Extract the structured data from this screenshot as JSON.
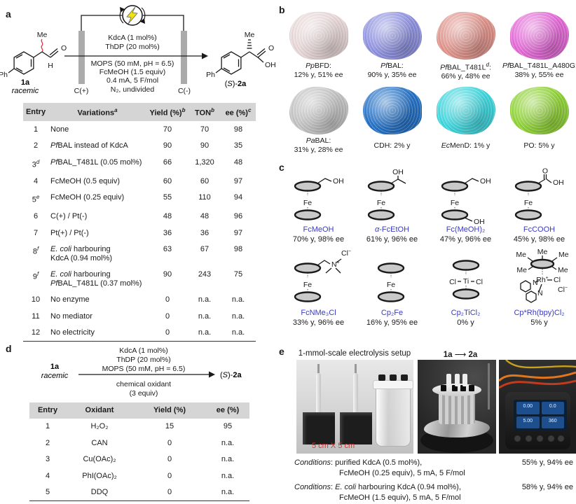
{
  "colors": {
    "accent": "#3b3bc0",
    "red": "#d53535",
    "header_bg": "#d5d5d5",
    "lightning": "#f0e20c"
  },
  "figure": {
    "panel_a": {
      "label": "a",
      "scheme": {
        "substrate": {
          "name": "1a",
          "note": "racemic",
          "me": "Me",
          "o": "O",
          "h": "H",
          "ph": "Ph"
        },
        "product": {
          "label_pre": "(",
          "label_stereo": "S",
          "label_post": ")-",
          "label_name": "2a",
          "me": "Me",
          "o": "O",
          "oh": "OH",
          "ph": "Ph"
        },
        "conditions_above": [
          "KdcA (1 mol%)",
          "ThDP (20 mol%)"
        ],
        "conditions_below": [
          "MOPS (50 mM, pH = 6.5)",
          "FcMeOH (1.5 equiv)",
          "0.4 mA, 5 F/mol",
          "N₂, undivided"
        ],
        "anode": "C(+)",
        "cathode": "C(-)"
      },
      "table": {
        "headers": [
          [
            {
              "t": "Entry"
            }
          ],
          [
            {
              "t": "Variations"
            },
            {
              "t": "a",
              "s": "sup"
            }
          ],
          [
            {
              "t": "Yield (%)"
            },
            {
              "t": "b",
              "s": "sup"
            }
          ],
          [
            {
              "t": "TON"
            },
            {
              "t": "b",
              "s": "sup"
            }
          ],
          [
            {
              "t": "ee (%)"
            },
            {
              "t": "c",
              "s": "sup"
            }
          ]
        ],
        "rows": [
          {
            "entry": [
              {
                "t": "1"
              }
            ],
            "variation": [
              {
                "t": "None"
              }
            ],
            "yield": "70",
            "ton": "70",
            "ee": "98"
          },
          {
            "entry": [
              {
                "t": "2"
              }
            ],
            "variation": [
              {
                "t": "Pf",
                "s": "i"
              },
              {
                "t": "BAL instead of KdcA"
              }
            ],
            "yield": "90",
            "ton": "90",
            "ee": "35"
          },
          {
            "entry": [
              {
                "t": "3"
              },
              {
                "t": "d",
                "s": "sup"
              }
            ],
            "variation": [
              {
                "t": "Pf",
                "s": "i"
              },
              {
                "t": "BAL_T481L (0.05 mol%)"
              }
            ],
            "yield": "66",
            "ton": "1,320",
            "ee": "48"
          },
          {
            "entry": [
              {
                "t": "4"
              }
            ],
            "variation": [
              {
                "t": "FcMeOH (0.5 equiv)"
              }
            ],
            "yield": "60",
            "ton": "60",
            "ee": "97"
          },
          {
            "entry": [
              {
                "t": "5"
              },
              {
                "t": "e",
                "s": "sup"
              }
            ],
            "variation": [
              {
                "t": "FcMeOH (0.25 equiv)"
              }
            ],
            "yield": "55",
            "ton": "110",
            "ee": "94"
          },
          {
            "entry": [
              {
                "t": "6"
              }
            ],
            "variation": [
              {
                "t": "C(+) / Pt(-)"
              }
            ],
            "yield": "48",
            "ton": "48",
            "ee": "96"
          },
          {
            "entry": [
              {
                "t": "7"
              }
            ],
            "variation": [
              {
                "t": "Pt(+) / Pt(-)"
              }
            ],
            "yield": "36",
            "ton": "36",
            "ee": "97"
          },
          {
            "entry": [
              {
                "t": "8"
              },
              {
                "t": "f",
                "s": "sup"
              }
            ],
            "variation": [
              {
                "t": "E. coli",
                "s": "i"
              },
              {
                "t": " harbouring"
              },
              {
                "br": true
              },
              {
                "t": "KdcA (0.94 mol%)"
              }
            ],
            "yield": "63",
            "ton": "67",
            "ee": "98"
          },
          {
            "entry": [
              {
                "t": "9"
              },
              {
                "t": "f",
                "s": "sup"
              }
            ],
            "variation": [
              {
                "t": "E. coli",
                "s": "i"
              },
              {
                "t": " harbouring"
              },
              {
                "br": true
              },
              {
                "t": "Pf",
                "s": "i"
              },
              {
                "t": "BAL_T481L (0.37 mol%)"
              }
            ],
            "yield": "90",
            "ton": "243",
            "ee": "75"
          },
          {
            "entry": [
              {
                "t": "10"
              }
            ],
            "variation": [
              {
                "t": "No enzyme"
              }
            ],
            "yield": "0",
            "ton": "n.a.",
            "ee": "n.a."
          },
          {
            "entry": [
              {
                "t": "11"
              }
            ],
            "variation": [
              {
                "t": "No mediator"
              }
            ],
            "yield": "0",
            "ton": "n.a.",
            "ee": "n.a."
          },
          {
            "entry": [
              {
                "t": "12"
              }
            ],
            "variation": [
              {
                "t": "No electricity"
              }
            ],
            "yield": "0",
            "ton": "n.a.",
            "ee": "n.a."
          }
        ]
      }
    },
    "panel_b": {
      "label": "b",
      "items": [
        {
          "name": [
            {
              "t": "Pp",
              "s": "i"
            },
            {
              "t": "BFD:"
            }
          ],
          "result": "12% y, 51% ee",
          "color": "#ead9d9"
        },
        {
          "name": [
            {
              "t": "Pf",
              "s": "i"
            },
            {
              "t": "BAL:"
            }
          ],
          "result": "90% y, 35% ee",
          "color": "#8f92e2"
        },
        {
          "name": [
            {
              "t": "Pf",
              "s": "i"
            },
            {
              "t": "BAL_T481L"
            },
            {
              "t": "d",
              "s": "sup"
            },
            {
              "t": ":"
            }
          ],
          "result": "66% y, 48% ee",
          "color": "#e2948c"
        },
        {
          "name": [
            {
              "t": "Pf",
              "s": "i"
            },
            {
              "t": "BAL_T481L_A480G:"
            }
          ],
          "result": "38% y, 55% ee",
          "color": "#e568d8"
        },
        {
          "name": [
            {
              "t": "Pa",
              "s": "i"
            },
            {
              "t": "BAL:"
            }
          ],
          "result": "31% y, 28% ee",
          "color": "#c4c4c4"
        },
        {
          "name": [
            {
              "t": "CDH: 2% y"
            }
          ],
          "result": "",
          "color": "#2472c8"
        },
        {
          "name": [
            {
              "t": "Ec",
              "s": "i"
            },
            {
              "t": "MenD: 1% y"
            }
          ],
          "result": "",
          "color": "#3ed8e0"
        },
        {
          "name": [
            {
              "t": "PO: 5% y"
            }
          ],
          "result": "",
          "color": "#90d435"
        }
      ]
    },
    "panel_c": {
      "label": "c",
      "atoms": {
        "fe": "Fe",
        "oh": "OH",
        "o": "O",
        "h": "H",
        "me": "Me",
        "n": "N",
        "cl": "Cl",
        "ti": "Ti",
        "rh": "Rh",
        "plus": "+",
        "minus": "−"
      },
      "items": [
        {
          "label": [
            {
              "t": "FcMeOH"
            }
          ],
          "result": "70% y, 98% ee"
        },
        {
          "label": [
            {
              "t": "α",
              "s": "i"
            },
            {
              "t": "-FcEtOH"
            }
          ],
          "result": "61% y, 96% ee"
        },
        {
          "label": [
            {
              "t": "Fc(MeOH)₂"
            }
          ],
          "result": "47% y, 96% ee"
        },
        {
          "label": [
            {
              "t": "FcCOOH"
            }
          ],
          "result": "45% y, 98% ee"
        },
        {
          "label": [
            {
              "t": "FcNMe₃Cl"
            }
          ],
          "result": "33% y, 96% ee"
        },
        {
          "label": [
            {
              "t": "Cp₂Fe"
            }
          ],
          "result": "16% y, 95% ee"
        },
        {
          "label": [
            {
              "t": "Cp₂TiCl₂"
            }
          ],
          "result": "0% y"
        },
        {
          "label": [
            {
              "t": "Cp*Rh(bpy)Cl₂"
            }
          ],
          "result": "5% y"
        }
      ]
    },
    "panel_d": {
      "label": "d",
      "scheme": {
        "substrate": {
          "name": "1a",
          "note": "racemic"
        },
        "product": {
          "label_pre": "(",
          "label_stereo": "S",
          "label_post": ")-",
          "label_name": "2a"
        },
        "conditions_above": [
          "KdcA (1 mol%)",
          "ThDP (20 mol%)",
          "MOPS (50 mM, pH = 6.5)"
        ],
        "conditions_below": [
          "chemical oxidant",
          "(3 equiv)"
        ]
      },
      "table": {
        "headers": [
          [
            {
              "t": "Entry"
            }
          ],
          [
            {
              "t": "Oxidant"
            }
          ],
          [
            {
              "t": "Yield (%)"
            }
          ],
          [
            {
              "t": "ee (%)"
            }
          ]
        ],
        "rows": [
          {
            "entry": "1",
            "oxidant": "H₂O₂",
            "yield": "15",
            "ee": "95"
          },
          {
            "entry": "2",
            "oxidant": "CAN",
            "yield": "0",
            "ee": "n.a."
          },
          {
            "entry": "3",
            "oxidant": "Cu(OAc)₂",
            "yield": "0",
            "ee": "n.a."
          },
          {
            "entry": "4",
            "oxidant": "PhI(OAc)₂",
            "yield": "0",
            "ee": "n.a."
          },
          {
            "entry": "5",
            "oxidant": "DDQ",
            "yield": "0",
            "ee": "n.a."
          }
        ]
      }
    },
    "panel_e": {
      "label": "e",
      "setup_title": "1-mmol-scale electrolysis setup",
      "reaction_from": "1a",
      "reaction_arrow": "⟶",
      "reaction_to": "2a",
      "scale_note": "5 cm X 5 cm",
      "device_screen": [
        "0.00",
        "0.0",
        "5.00",
        "360"
      ],
      "conditions": [
        {
          "line1": [
            {
              "t": "Conditions",
              "s": "i"
            },
            {
              "t": ": purified KdcA (0.5 mol%),"
            }
          ],
          "line2": "FcMeOH (0.25 equiv), 5 mA, 5 F/mol",
          "result": "55% y, 94% ee"
        },
        {
          "line1": [
            {
              "t": "Conditions",
              "s": "i"
            },
            {
              "t": ": "
            },
            {
              "t": "E. coli",
              "s": "i"
            },
            {
              "t": " harbouring KdcA (0.94 mol%),"
            }
          ],
          "line2": "FcMeOH (1.5 equiv), 5 mA, 5 F/mol",
          "result": "58% y, 94% ee"
        }
      ]
    }
  }
}
